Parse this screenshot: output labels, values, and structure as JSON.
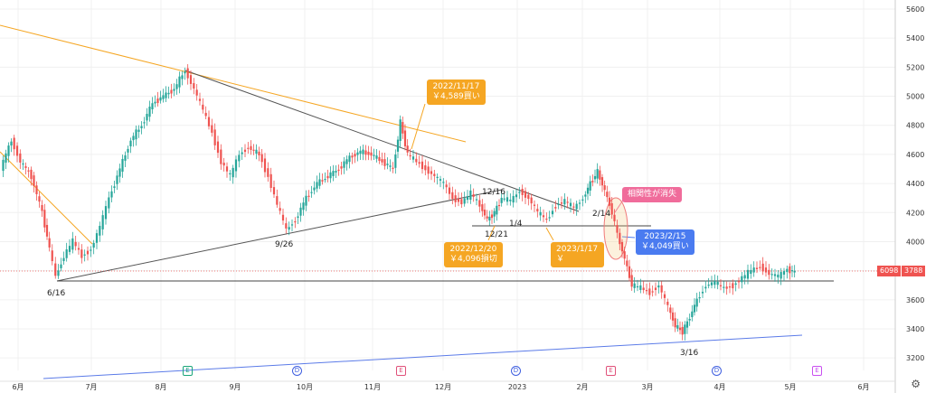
{
  "chart_data": {
    "type": "candlestick",
    "title": "",
    "xlabel": "",
    "ylabel": "",
    "x_ticks": [
      "6月",
      "7月",
      "8月",
      "9月",
      "10月",
      "11月",
      "12月",
      "2023",
      "2月",
      "3月",
      "4月",
      "5月",
      "6月"
    ],
    "ylim": [
      3150,
      5700
    ],
    "y_ticks": [
      3200,
      3400,
      3600,
      3800,
      4000,
      4200,
      4400,
      4600,
      4800,
      5000,
      5200,
      5400,
      5600
    ],
    "grid": true,
    "price_badge": "6098",
    "current_price_badge": "3788",
    "current_price": 3788,
    "colors": {
      "up": "#26a69a",
      "down": "#ef5350",
      "orange_line": "#f5a623",
      "blue_line": "#5b7be8",
      "black_line": "#444444"
    },
    "point_labels": [
      "6/16",
      "9/26",
      "12/16",
      "12/21",
      "1/4",
      "2/14",
      "3/16"
    ],
    "annotations": [
      {
        "id": "buy1",
        "lines": [
          "2022/11/17",
          "￥4,589買い"
        ],
        "color": "orange"
      },
      {
        "id": "cut",
        "lines": [
          "2022/12/20",
          "￥4,096損切"
        ],
        "color": "orange"
      },
      {
        "id": "jan17",
        "lines": [
          "2023/1/17",
          "￥"
        ],
        "color": "orange"
      },
      {
        "id": "corr",
        "lines": [
          "相関性が消失"
        ],
        "color": "pink"
      },
      {
        "id": "buy2",
        "lines": [
          "2023/2/15",
          "￥4,049買い"
        ],
        "color": "blue"
      }
    ],
    "event_markers": [
      "E",
      "D",
      "E",
      "D",
      "E",
      "D",
      "E"
    ]
  }
}
